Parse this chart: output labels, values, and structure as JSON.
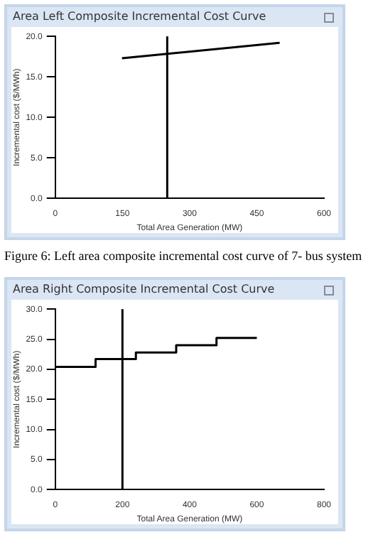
{
  "chart_data": [
    {
      "type": "line",
      "title": "Area Left Composite Incremental Cost Curve",
      "xlabel": "Total Area Generation (MW)",
      "ylabel": "Incremental cost ($/MWh)",
      "x": [
        149,
        501
      ],
      "values": [
        17.3,
        19.2
      ],
      "color": "#000000",
      "marker": "none",
      "xlim": [
        0,
        600
      ],
      "xticks": [
        0,
        150,
        300,
        450,
        600
      ],
      "ylim": [
        0,
        20
      ],
      "yticks": [
        {
          "value": 0,
          "label": "0.0"
        },
        {
          "value": 5,
          "label": "5.0"
        },
        {
          "value": 10,
          "label": "10.0"
        },
        {
          "value": 15,
          "label": "15.0"
        },
        {
          "value": 20,
          "label": "20.0"
        }
      ],
      "ref_lines": [
        {
          "axis": "x",
          "value": 250,
          "color": "#000000"
        }
      ],
      "annotations": [
        "Figure 6: Left area composite incremental cost curve of 7- bus system"
      ]
    },
    {
      "type": "step",
      "title": "Area Right Composite Incremental Cost Curve",
      "xlabel": "Total Area Generation (MW)",
      "ylabel": "Incremental cost ($/MWh)",
      "x": [
        0,
        120,
        240,
        360,
        480,
        600
      ],
      "values": [
        20.4,
        21.7,
        22.8,
        24.0,
        25.2,
        25.2
      ],
      "color": "#000000",
      "marker": "none",
      "xlim": [
        0,
        800
      ],
      "xticks": [
        0,
        200,
        400,
        600,
        800
      ],
      "ylim": [
        0,
        30
      ],
      "yticks": [
        {
          "value": 0,
          "label": "0.0"
        },
        {
          "value": 5,
          "label": "5.0"
        },
        {
          "value": 10,
          "label": "10.0"
        },
        {
          "value": 15,
          "label": "15.0"
        },
        {
          "value": 20,
          "label": "20.0"
        },
        {
          "value": 25,
          "label": "25.0"
        },
        {
          "value": 30,
          "label": "30.0"
        }
      ],
      "ref_lines": [
        {
          "axis": "x",
          "value": 200,
          "color": "#000000"
        }
      ]
    }
  ]
}
